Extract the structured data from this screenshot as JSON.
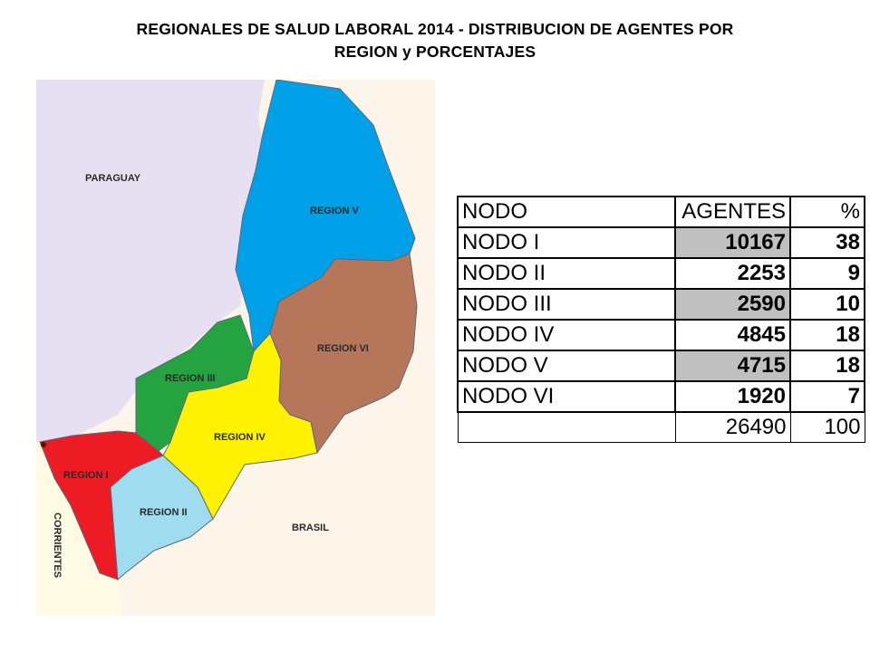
{
  "title": {
    "line1": "REGIONALES DE SALUD LABORAL 2014 - DISTRIBUCION DE AGENTES POR",
    "line2": "REGION y PORCENTAJES"
  },
  "map": {
    "countries": {
      "paraguay": "PARAGUAY",
      "brasil": "BRASIL",
      "corrientes": "CORRIENTES"
    },
    "regions": [
      {
        "id": "region-v",
        "label": "REGION V",
        "color": "#00a0e8"
      },
      {
        "id": "region-vi",
        "label": "REGION VI",
        "color": "#b5765a"
      },
      {
        "id": "region-iii",
        "label": "REGION III",
        "color": "#24a340"
      },
      {
        "id": "region-iv",
        "label": "REGION IV",
        "color": "#fff200"
      },
      {
        "id": "region-i",
        "label": "REGION I",
        "color": "#ed1c24"
      },
      {
        "id": "region-ii",
        "label": "REGION II",
        "color": "#9fdcef"
      }
    ],
    "colors": {
      "paraguay_bg": "#e6e0f2",
      "brasil_bg": "#fdf4ea",
      "corrientes_bg": "#fdfbe4"
    }
  },
  "table": {
    "header": {
      "nodo": "NODO",
      "agentes": "AGENTES",
      "pct": "%"
    },
    "rows": [
      {
        "nodo": "NODO I",
        "agentes": "10167",
        "pct": "38",
        "shaded": true
      },
      {
        "nodo": "NODO II",
        "agentes": "2253",
        "pct": "9",
        "shaded": false
      },
      {
        "nodo": "NODO III",
        "agentes": "2590",
        "pct": "10",
        "shaded": true
      },
      {
        "nodo": "NODO IV",
        "agentes": "4845",
        "pct": "18",
        "shaded": false
      },
      {
        "nodo": "NODO V",
        "agentes": "4715",
        "pct": "18",
        "shaded": true
      },
      {
        "nodo": "NODO VI",
        "agentes": "1920",
        "pct": "7",
        "shaded": false
      }
    ],
    "total": {
      "nodo": "",
      "agentes": "26490",
      "pct": "100"
    }
  }
}
